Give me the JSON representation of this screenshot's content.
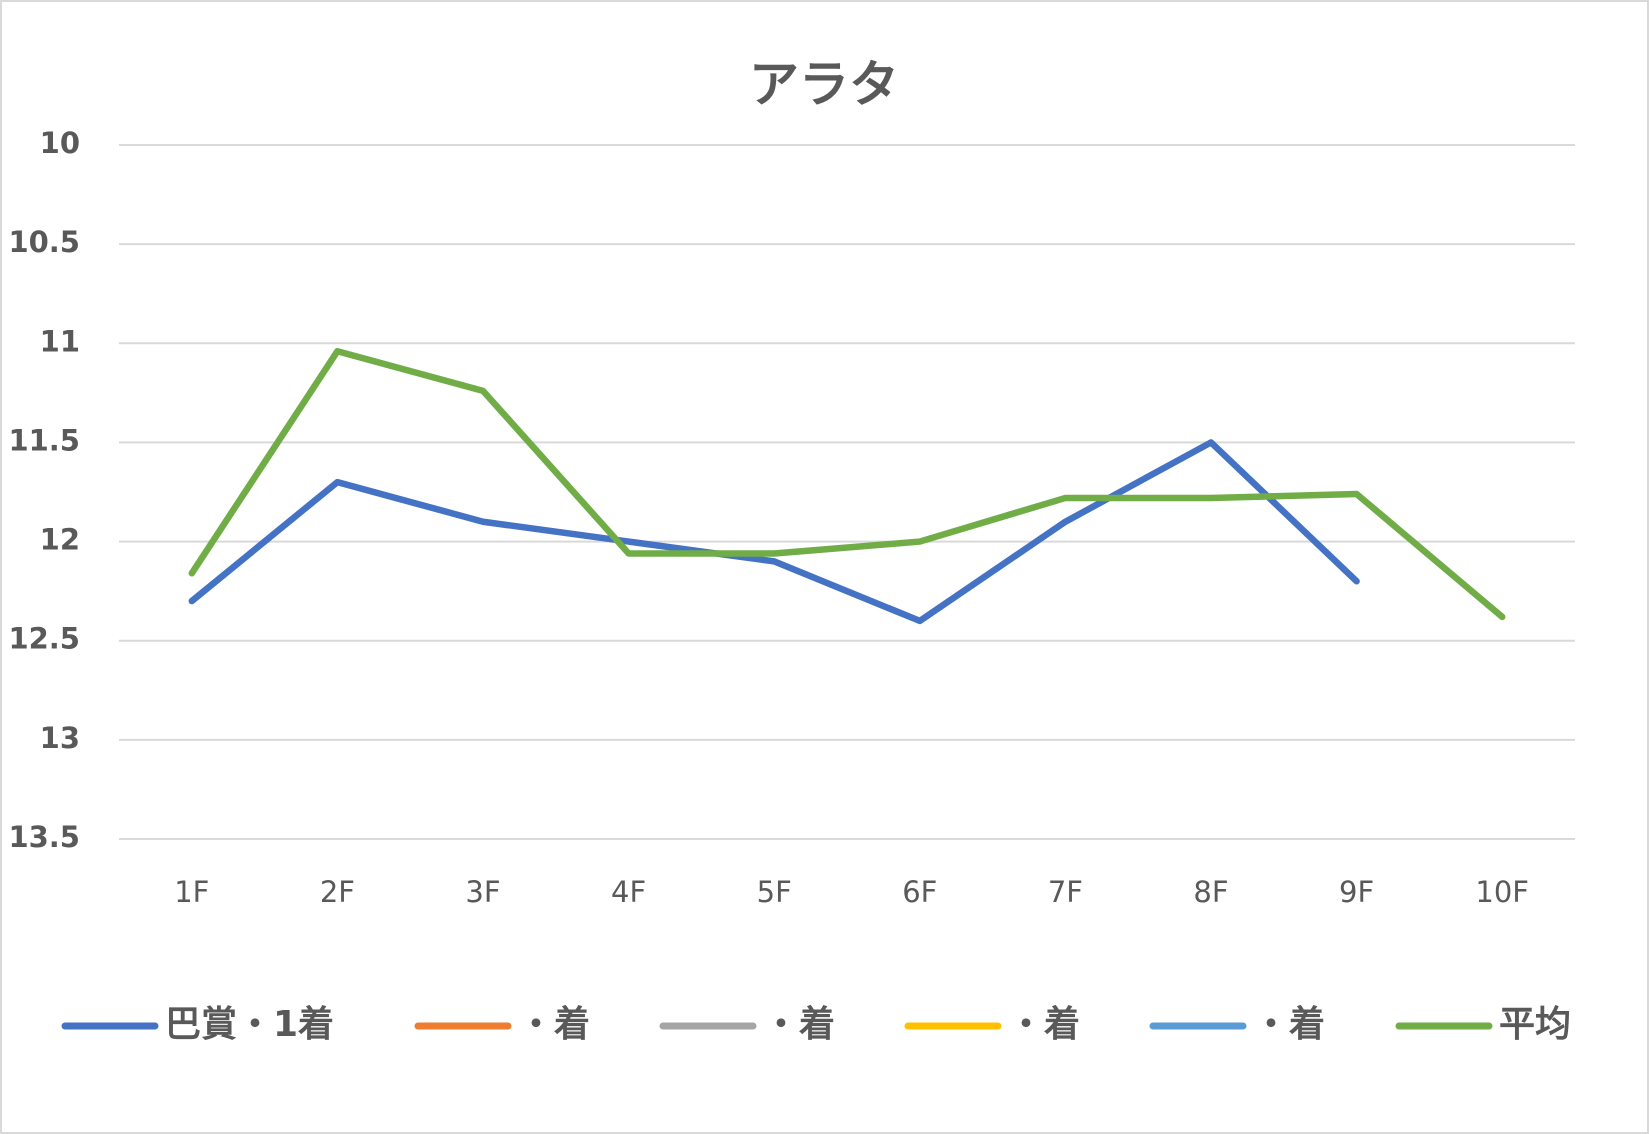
{
  "chart_data": {
    "type": "line",
    "title": "アラタ",
    "categories": [
      "1F",
      "2F",
      "3F",
      "4F",
      "5F",
      "6F",
      "7F",
      "8F",
      "9F",
      "10F"
    ],
    "series": [
      {
        "name": "巴賞・1着",
        "color": "#4472c4",
        "values": [
          12.3,
          11.7,
          11.9,
          12.0,
          12.1,
          12.4,
          11.9,
          11.5,
          12.2,
          null
        ]
      },
      {
        "name": "・着",
        "color": "#ed7d31",
        "values": [
          null,
          null,
          null,
          null,
          null,
          null,
          null,
          null,
          null,
          null
        ]
      },
      {
        "name": "・着",
        "color": "#a5a5a5",
        "values": [
          null,
          null,
          null,
          null,
          null,
          null,
          null,
          null,
          null,
          null
        ]
      },
      {
        "name": "・着",
        "color": "#ffc000",
        "values": [
          null,
          null,
          null,
          null,
          null,
          null,
          null,
          null,
          null,
          null
        ]
      },
      {
        "name": "・着",
        "color": "#5b9bd5",
        "values": [
          null,
          null,
          null,
          null,
          null,
          null,
          null,
          null,
          null,
          null
        ]
      },
      {
        "name": "平均",
        "color": "#70ad47",
        "values": [
          12.16,
          11.04,
          11.24,
          12.06,
          12.06,
          12.0,
          11.78,
          11.78,
          11.76,
          12.38
        ]
      }
    ],
    "ylim": [
      10,
      13.5
    ],
    "yticks": [
      10,
      10.5,
      11,
      11.5,
      12,
      12.5,
      13,
      13.5
    ],
    "y_reversed": true,
    "grid": true,
    "legend": "bottom"
  }
}
